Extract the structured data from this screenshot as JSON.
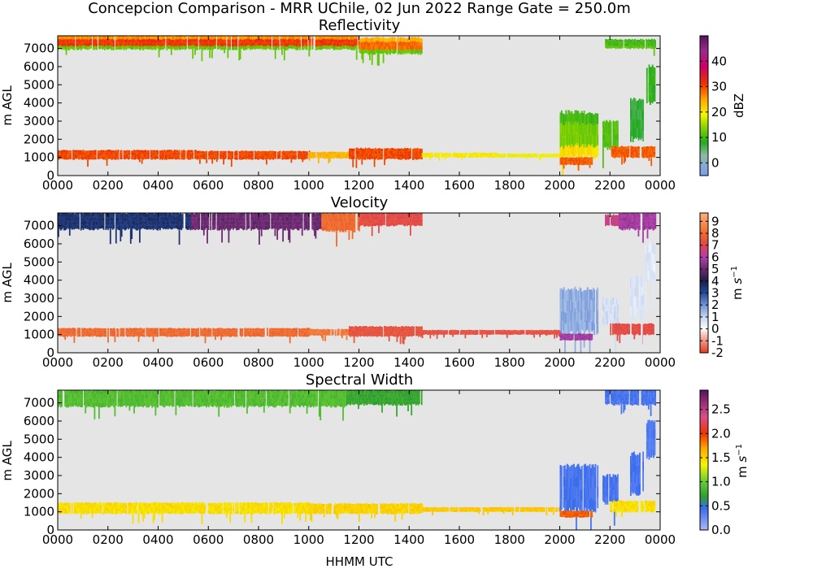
{
  "figure": {
    "title": "Concepcion Comparison - MRR UChile, 02 Jun 2022 Range Gate = 250.0m",
    "xlabel": "HHMM UTC"
  },
  "chart_data": [
    {
      "type": "heatmap",
      "title": "Reflectivity",
      "xlabel": "",
      "ylabel": "m AGL",
      "x_tick_labels": [
        "0000",
        "0200",
        "0400",
        "0600",
        "0800",
        "1000",
        "1200",
        "1400",
        "1600",
        "1800",
        "2000",
        "2200",
        "0000"
      ],
      "xlim_hours": [
        0,
        24
      ],
      "y_ticks": [
        0,
        1000,
        2000,
        3000,
        4000,
        5000,
        6000,
        7000
      ],
      "ylim": [
        0,
        7700
      ],
      "colorbar": {
        "label": "dBZ",
        "range": [
          -5,
          50
        ],
        "ticks": [
          0,
          10,
          20,
          30,
          40
        ],
        "stops": [
          {
            "v": -5,
            "c": "#7b9ef5"
          },
          {
            "v": 3,
            "c": "#8fb9a0"
          },
          {
            "v": 8,
            "c": "#22aa22"
          },
          {
            "v": 14,
            "c": "#88d400"
          },
          {
            "v": 19,
            "c": "#f5f500"
          },
          {
            "v": 25,
            "c": "#ffa500"
          },
          {
            "v": 31,
            "c": "#ee3300"
          },
          {
            "v": 38,
            "c": "#cc0066"
          },
          {
            "v": 44,
            "c": "#9a2b8e"
          },
          {
            "v": 50,
            "c": "#5a1060"
          }
        ]
      },
      "regions": [
        {
          "t0": 0.0,
          "t1": 12.0,
          "h0": 6950,
          "h1": 7700,
          "v": 31,
          "top_v": 26,
          "bottom_v": 12
        },
        {
          "t0": 12.0,
          "t1": 14.5,
          "h0": 6700,
          "h1": 7600,
          "v": 28,
          "top_v": 24,
          "bottom_v": 12
        },
        {
          "t0": 21.8,
          "t1": 23.8,
          "h0": 7000,
          "h1": 7500,
          "v": 10,
          "bottom_v": 12
        },
        {
          "t0": 0.0,
          "t1": 5.5,
          "h0": 900,
          "h1": 1400,
          "v": 30
        },
        {
          "t0": 5.5,
          "t1": 10.0,
          "h0": 900,
          "h1": 1350,
          "v": 30
        },
        {
          "t0": 10.0,
          "t1": 11.6,
          "h0": 950,
          "h1": 1300,
          "v": 24
        },
        {
          "t0": 11.6,
          "t1": 14.5,
          "h0": 900,
          "h1": 1500,
          "v": 30
        },
        {
          "t0": 14.5,
          "t1": 17.5,
          "h0": 1000,
          "h1": 1250,
          "v": 20
        },
        {
          "t0": 17.5,
          "t1": 20.0,
          "h0": 1000,
          "h1": 1200,
          "v": 19
        },
        {
          "t0": 20.0,
          "t1": 21.5,
          "h0": 1000,
          "h1": 3500,
          "v": 13,
          "top_v": 10,
          "bottom_v": 21
        },
        {
          "t0": 20.0,
          "t1": 21.3,
          "h0": 600,
          "h1": 1000,
          "v": 29
        },
        {
          "t0": 21.7,
          "t1": 22.3,
          "h0": 1500,
          "h1": 3000,
          "v": 11
        },
        {
          "t0": 22.0,
          "t1": 23.8,
          "h0": 1000,
          "h1": 1600,
          "v": 29
        },
        {
          "t0": 22.8,
          "t1": 23.3,
          "h0": 2000,
          "h1": 4200,
          "v": 7
        },
        {
          "t0": 23.4,
          "t1": 23.8,
          "h0": 4000,
          "h1": 6000,
          "v": 9
        }
      ]
    },
    {
      "type": "heatmap",
      "title": "Velocity",
      "xlabel": "",
      "ylabel": "m AGL",
      "x_tick_labels": [
        "0000",
        "0200",
        "0400",
        "0600",
        "0800",
        "1000",
        "1200",
        "1400",
        "1600",
        "1800",
        "2000",
        "2200",
        "0000"
      ],
      "xlim_hours": [
        0,
        24
      ],
      "y_ticks": [
        0,
        1000,
        2000,
        3000,
        4000,
        5000,
        6000,
        7000
      ],
      "ylim": [
        0,
        7700
      ],
      "colorbar": {
        "label": "m s$^{-1}$",
        "range": [
          -2,
          9.7
        ],
        "ticks": [
          -2,
          -1,
          0,
          1,
          2,
          3,
          4,
          5,
          6,
          7,
          8,
          9
        ],
        "stops": [
          {
            "v": -2,
            "c": "#e83a1e"
          },
          {
            "v": -0.5,
            "c": "#f6c3b8"
          },
          {
            "v": 0,
            "c": "#ffffff"
          },
          {
            "v": 1,
            "c": "#c4d4f0"
          },
          {
            "v": 2,
            "c": "#6f93d6"
          },
          {
            "v": 3,
            "c": "#234b9a"
          },
          {
            "v": 4,
            "c": "#1a1f4a"
          },
          {
            "v": 5,
            "c": "#6b2a6e"
          },
          {
            "v": 6,
            "c": "#b13fae"
          },
          {
            "v": 7,
            "c": "#e0444c"
          },
          {
            "v": 8,
            "c": "#f06a2a"
          },
          {
            "v": 9.7,
            "c": "#ffb07a"
          }
        ]
      },
      "regions": [
        {
          "t0": 0.0,
          "t1": 5.3,
          "h0": 6800,
          "h1": 7700,
          "v": 3.5
        },
        {
          "t0": 5.3,
          "t1": 10.5,
          "h0": 6800,
          "h1": 7700,
          "v": 5.0
        },
        {
          "t0": 10.5,
          "t1": 12.0,
          "h0": 6700,
          "h1": 7700,
          "v": 8.0
        },
        {
          "t0": 12.0,
          "t1": 14.5,
          "h0": 7000,
          "h1": 7700,
          "v": 7.2
        },
        {
          "t0": 21.8,
          "t1": 22.3,
          "h0": 7000,
          "h1": 7600,
          "v": 6.5
        },
        {
          "t0": 22.3,
          "t1": 23.8,
          "h0": 6800,
          "h1": 7700,
          "v": 5.8
        },
        {
          "t0": 0.0,
          "t1": 10.0,
          "h0": 900,
          "h1": 1350,
          "v": 8.0
        },
        {
          "t0": 10.0,
          "t1": 11.6,
          "h0": 950,
          "h1": 1300,
          "v": 8.3
        },
        {
          "t0": 11.6,
          "t1": 14.5,
          "h0": 900,
          "h1": 1450,
          "v": 7.4
        },
        {
          "t0": 14.5,
          "t1": 20.0,
          "h0": 1000,
          "h1": 1250,
          "v": 7.3
        },
        {
          "t0": 20.0,
          "t1": 21.5,
          "h0": 1100,
          "h1": 3500,
          "v": 1.6
        },
        {
          "t0": 20.0,
          "t1": 21.3,
          "h0": 700,
          "h1": 1050,
          "v": 5.8
        },
        {
          "t0": 21.7,
          "t1": 22.3,
          "h0": 1500,
          "h1": 3000,
          "v": 0.8
        },
        {
          "t0": 22.0,
          "t1": 23.8,
          "h0": 1000,
          "h1": 1600,
          "v": 7.2
        },
        {
          "t0": 22.8,
          "t1": 23.3,
          "h0": 2000,
          "h1": 4200,
          "v": 0.6
        },
        {
          "t0": 23.4,
          "t1": 23.8,
          "h0": 4000,
          "h1": 6000,
          "v": 0.5
        }
      ]
    },
    {
      "type": "heatmap",
      "title": "Spectral Width",
      "xlabel": "HHMM UTC",
      "ylabel": "m AGL",
      "x_tick_labels": [
        "0000",
        "0200",
        "0400",
        "0600",
        "0800",
        "1000",
        "1200",
        "1400",
        "1600",
        "1800",
        "2000",
        "2200",
        "0000"
      ],
      "xlim_hours": [
        0,
        24
      ],
      "y_ticks": [
        0,
        1000,
        2000,
        3000,
        4000,
        5000,
        6000,
        7000
      ],
      "ylim": [
        0,
        7700
      ],
      "colorbar": {
        "label": "m s$^{-1}$",
        "range": [
          0,
          2.9
        ],
        "ticks": [
          0.0,
          0.5,
          1.0,
          1.5,
          2.0,
          2.5
        ],
        "stops": [
          {
            "v": 0,
            "c": "#a8b8f5"
          },
          {
            "v": 0.45,
            "c": "#3a6bf0"
          },
          {
            "v": 0.7,
            "c": "#2ea02e"
          },
          {
            "v": 1.0,
            "c": "#66cc33"
          },
          {
            "v": 1.35,
            "c": "#f5f500"
          },
          {
            "v": 1.7,
            "c": "#ffa500"
          },
          {
            "v": 2.0,
            "c": "#ee3300"
          },
          {
            "v": 2.35,
            "c": "#d94e8a"
          },
          {
            "v": 2.9,
            "c": "#5a1060"
          }
        ]
      },
      "regions": [
        {
          "t0": 0.0,
          "t1": 11.5,
          "h0": 6800,
          "h1": 7700,
          "v": 0.9
        },
        {
          "t0": 11.5,
          "t1": 14.5,
          "h0": 6900,
          "h1": 7700,
          "v": 0.75
        },
        {
          "t0": 21.8,
          "t1": 23.8,
          "h0": 6900,
          "h1": 7700,
          "v": 0.4
        },
        {
          "t0": 0.0,
          "t1": 10.0,
          "h0": 900,
          "h1": 1500,
          "v": 1.45
        },
        {
          "t0": 10.0,
          "t1": 14.5,
          "h0": 900,
          "h1": 1450,
          "v": 1.5
        },
        {
          "t0": 14.5,
          "t1": 20.0,
          "h0": 1000,
          "h1": 1250,
          "v": 1.55
        },
        {
          "t0": 20.0,
          "t1": 21.5,
          "h0": 1100,
          "h1": 3500,
          "v": 0.4
        },
        {
          "t0": 20.0,
          "t1": 21.3,
          "h0": 700,
          "h1": 1050,
          "v": 1.9
        },
        {
          "t0": 21.7,
          "t1": 22.3,
          "h0": 1500,
          "h1": 3000,
          "v": 0.4
        },
        {
          "t0": 22.0,
          "t1": 23.8,
          "h0": 1000,
          "h1": 1600,
          "v": 1.45
        },
        {
          "t0": 22.8,
          "t1": 23.3,
          "h0": 2000,
          "h1": 4200,
          "v": 0.4
        },
        {
          "t0": 23.4,
          "t1": 23.8,
          "h0": 4000,
          "h1": 6000,
          "v": 0.35
        }
      ]
    }
  ]
}
